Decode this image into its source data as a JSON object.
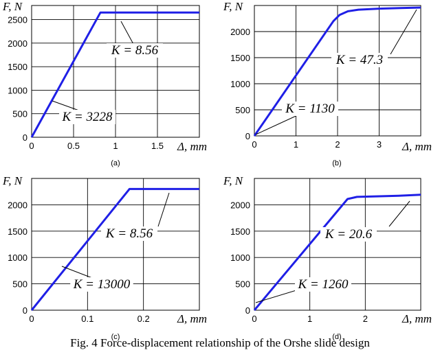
{
  "figure_caption": "Fig. 4 Force-displacement relationship of the Orshe slide design",
  "chart_data": [
    {
      "type": "line",
      "panel_label": "(a)",
      "ylabel": "F, N",
      "xlabel": "Δ, mm",
      "xlim": [
        0,
        2
      ],
      "ylim": [
        0,
        2800
      ],
      "x_ticks": [
        0,
        0.5,
        1,
        1.5
      ],
      "x_tick_labels": [
        "0",
        "0.5",
        "1",
        "1.5"
      ],
      "y_ticks": [
        0,
        500,
        1000,
        1500,
        2000,
        2500
      ],
      "y_tick_labels": [
        "0",
        "500",
        "1000",
        "1500",
        "2000",
        "2500"
      ],
      "grid": true,
      "series": [
        {
          "x": [
            0,
            0.82,
            2
          ],
          "y": [
            0,
            2650,
            2650
          ]
        }
      ],
      "annotations": [
        "K = 8.56",
        "K = 3228"
      ]
    },
    {
      "type": "line",
      "panel_label": "(b)",
      "ylabel": "F, N",
      "xlabel": "Δ, mm",
      "xlim": [
        0,
        4
      ],
      "ylim": [
        0,
        2500
      ],
      "x_ticks": [
        0,
        1,
        2,
        3
      ],
      "x_tick_labels": [
        "0",
        "1",
        "2",
        "3"
      ],
      "y_ticks": [
        0,
        500,
        1000,
        1500,
        2000
      ],
      "y_tick_labels": [
        "0",
        "500",
        "1000",
        "1500",
        "2000"
      ],
      "grid": true,
      "series": [
        {
          "x": [
            0,
            1.9,
            2.05,
            2.25,
            2.5,
            3.0,
            3.5,
            4
          ],
          "y": [
            0,
            2200,
            2320,
            2390,
            2420,
            2440,
            2450,
            2460
          ]
        }
      ],
      "annotations": [
        "K = 47.3",
        "K = 1130"
      ]
    },
    {
      "type": "line",
      "panel_label": "(c)",
      "ylabel": "F, N",
      "xlabel": "Δ, mm",
      "xlim": [
        0,
        0.3
      ],
      "ylim": [
        0,
        2500
      ],
      "x_ticks": [
        0,
        0.1,
        0.2
      ],
      "x_tick_labels": [
        "0",
        "0.1",
        "0.2"
      ],
      "y_ticks": [
        0,
        500,
        1000,
        1500,
        2000
      ],
      "y_tick_labels": [
        "0",
        "500",
        "1000",
        "1500",
        "2000"
      ],
      "grid": true,
      "series": [
        {
          "x": [
            0,
            0.175,
            0.3
          ],
          "y": [
            0,
            2300,
            2300
          ]
        }
      ],
      "annotations": [
        "K = 8.56",
        "K = 13000"
      ]
    },
    {
      "type": "line",
      "panel_label": "(d)",
      "ylabel": "F, N",
      "xlabel": "Δ, mm",
      "xlim": [
        0,
        3
      ],
      "ylim": [
        0,
        2500
      ],
      "x_ticks": [
        0,
        1,
        2
      ],
      "x_tick_labels": [
        "0",
        "1",
        "2"
      ],
      "y_ticks": [
        0,
        500,
        1000,
        1500,
        2000
      ],
      "y_tick_labels": [
        "0",
        "500",
        "1000",
        "1500",
        "2000"
      ],
      "grid": true,
      "series": [
        {
          "x": [
            0,
            1.68,
            1.85,
            2.2,
            2.6,
            3
          ],
          "y": [
            0,
            2110,
            2150,
            2160,
            2170,
            2190
          ]
        }
      ],
      "annotations": [
        "K = 20.6",
        "K = 1260"
      ]
    }
  ]
}
